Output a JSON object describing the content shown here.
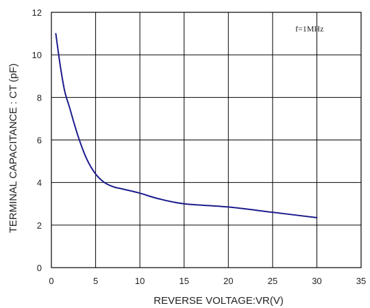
{
  "chart_data": {
    "type": "line",
    "title": "",
    "xlabel": "REVERSE VOLTAGE:VR(V)",
    "ylabel": "TERMINAL CAPACITANCE : CT (pF)",
    "xlim": [
      0,
      35
    ],
    "ylim": [
      0,
      12
    ],
    "x_ticks": [
      0,
      5,
      10,
      15,
      20,
      25,
      30,
      35
    ],
    "y_ticks": [
      0,
      2,
      4,
      6,
      8,
      10,
      12
    ],
    "grid": true,
    "annotations": [
      {
        "text": "f=1MHz"
      }
    ],
    "series": [
      {
        "color": "#1a1a8c",
        "x": [
          0.5,
          1,
          1.5,
          2,
          3,
          4,
          5,
          6,
          7,
          8,
          10,
          12,
          15,
          20,
          25,
          30
        ],
        "y": [
          11.0,
          9.5,
          8.3,
          7.6,
          6.2,
          5.1,
          4.4,
          4.0,
          3.8,
          3.7,
          3.5,
          3.25,
          3.0,
          2.85,
          2.6,
          2.35
        ]
      }
    ]
  }
}
